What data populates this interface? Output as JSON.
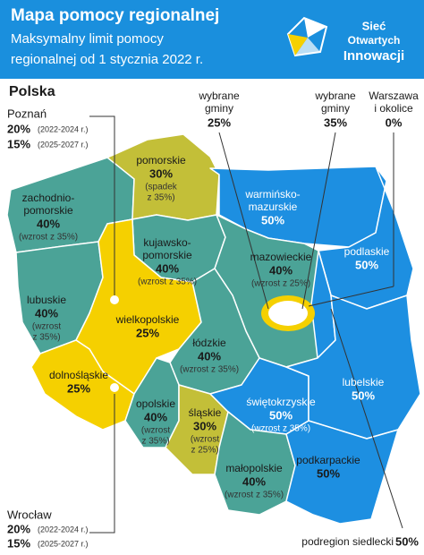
{
  "header": {
    "title": "Mapa pomocy regionalnej",
    "subtitle": [
      "Maksymalny limit pomocy",
      "regionalnej od 1 stycznia 2022 r."
    ],
    "logo": [
      "Sieć",
      "Otwartych",
      "Innowacji"
    ]
  },
  "country": "Polska",
  "callouts": [
    {
      "name": "Poznań",
      "rows": [
        {
          "pct": "20%",
          "period": "(2022-2024 r.)"
        },
        {
          "pct": "15%",
          "period": "(2025-2027 r.)"
        }
      ]
    },
    {
      "name": "Wrocław",
      "rows": [
        {
          "pct": "20%",
          "period": "(2022-2024 r.)"
        },
        {
          "pct": "15%",
          "period": "(2025-2027 r.)"
        }
      ]
    }
  ],
  "top_labels": [
    {
      "lines": [
        "wybrane",
        "gminy"
      ],
      "pct": "25%"
    },
    {
      "lines": [
        "wybrane",
        "gminy"
      ],
      "pct": "35%"
    },
    {
      "lines": [
        "Warszawa",
        "i okolice"
      ],
      "pct": "0%"
    }
  ],
  "regions": [
    {
      "name": [
        "pomorskie"
      ],
      "pct": "30%",
      "note": [
        "(spadek",
        "z 35%)"
      ]
    },
    {
      "name": [
        "zachodnio-",
        "pomorskie"
      ],
      "pct": "40%",
      "note": [
        "(wzrost z 35%)"
      ]
    },
    {
      "name": [
        "warmińsko-",
        "mazurskie"
      ],
      "pct": "50%",
      "note": []
    },
    {
      "name": [
        "kujawsko-",
        "pomorskie"
      ],
      "pct": "40%",
      "note": [
        "(wzrost z 35%)"
      ]
    },
    {
      "name": [
        "mazowieckie"
      ],
      "pct": "40%",
      "note": [
        "(wzrost z 25%)"
      ]
    },
    {
      "name": [
        "podlaskie"
      ],
      "pct": "50%",
      "note": []
    },
    {
      "name": [
        "lubuskie"
      ],
      "pct": "40%",
      "note": [
        "(wzrost",
        "z 35%)"
      ]
    },
    {
      "name": [
        "wielkopolskie"
      ],
      "pct": "25%",
      "note": []
    },
    {
      "name": [
        "łódzkie"
      ],
      "pct": "40%",
      "note": [
        "(wzrost z 35%)"
      ]
    },
    {
      "name": [
        "lubelskie"
      ],
      "pct": "50%",
      "note": []
    },
    {
      "name": [
        "dolnośląskie"
      ],
      "pct": "25%",
      "note": []
    },
    {
      "name": [
        "opolskie"
      ],
      "pct": "40%",
      "note": [
        "(wzrost",
        "z 35%)"
      ]
    },
    {
      "name": [
        "śląskie"
      ],
      "pct": "30%",
      "note": [
        "(wzrost",
        "z 25%)"
      ]
    },
    {
      "name": [
        "świętokrzyskie"
      ],
      "pct": "50%",
      "note": [
        "(wzrost z 35%)"
      ]
    },
    {
      "name": [
        "małopolskie"
      ],
      "pct": "40%",
      "note": [
        "(wzrost z 35%)"
      ]
    },
    {
      "name": [
        "podkarpackie"
      ],
      "pct": "50%",
      "note": []
    }
  ],
  "subregion": {
    "name": "podregion siedlecki",
    "pct": "50%"
  }
}
